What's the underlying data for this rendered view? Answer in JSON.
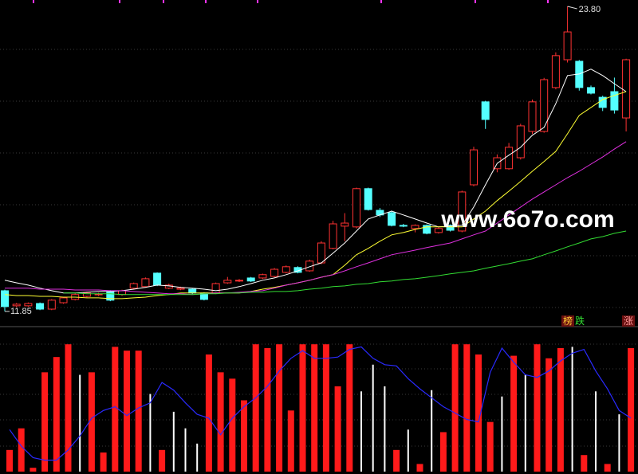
{
  "chart_data": [
    {
      "type": "candlestick",
      "ylim": [
        11.41,
        24.05
      ],
      "up_color": "#ff3232",
      "down_color": "#54ffff",
      "open": [
        12.66,
        12.07,
        12.07,
        12.16,
        11.94,
        12.19,
        12.32,
        12.44,
        12.51,
        12.63,
        12.51,
        12.76,
        12.82,
        13.35,
        12.76,
        12.72,
        12.72,
        12.57,
        12.57,
        12.97,
        13.04,
        13.16,
        13.16,
        13.22,
        13.38,
        13.57,
        13.44,
        13.75,
        14.32,
        15.19,
        15.16,
        16.66,
        15.81,
        15.72,
        15.22,
        15.1,
        15.22,
        14.94,
        15.22,
        15.0,
        16.81,
        20.06,
        17.44,
        17.44,
        17.87,
        18.9,
        18.9,
        20.62,
        21.71,
        21.65,
        20.62,
        20.24,
        20.46,
        19.43
      ],
      "high": [
        12.7,
        12.18,
        12.2,
        12.2,
        12.33,
        12.42,
        12.55,
        12.62,
        12.58,
        12.68,
        12.7,
        12.98,
        13.18,
        13.38,
        12.94,
        12.82,
        12.76,
        12.6,
        12.98,
        13.2,
        13.12,
        13.2,
        13.33,
        13.55,
        13.65,
        13.62,
        13.88,
        14.6,
        15.4,
        15.7,
        16.7,
        16.7,
        15.9,
        15.8,
        15.28,
        15.26,
        15.26,
        15.14,
        15.26,
        16.58,
        18.3,
        20.1,
        18.0,
        18.45,
        19.2,
        20.15,
        21.0,
        22.0,
        23.8,
        21.7,
        20.7,
        20.3,
        21.01,
        21.75
      ],
      "low": [
        11.85,
        12.02,
        12.03,
        11.9,
        11.9,
        12.15,
        12.28,
        12.4,
        12.45,
        12.25,
        12.46,
        12.72,
        12.78,
        12.84,
        12.72,
        12.68,
        12.5,
        12.28,
        12.53,
        12.93,
        13.0,
        13.0,
        13.12,
        13.18,
        13.34,
        13.34,
        13.4,
        13.7,
        14.28,
        14.6,
        15.1,
        15.8,
        15.55,
        15.18,
        15.15,
        14.95,
        14.87,
        14.9,
        14.98,
        14.95,
        16.75,
        19.0,
        17.3,
        17.4,
        17.8,
        18.8,
        18.85,
        20.55,
        21.6,
        20.5,
        20.35,
        19.7,
        19.6,
        18.9
      ],
      "close": [
        12.04,
        12.13,
        12.16,
        11.94,
        12.29,
        12.38,
        12.51,
        12.57,
        12.53,
        12.29,
        12.66,
        12.94,
        13.13,
        12.88,
        12.88,
        12.76,
        12.57,
        12.32,
        12.94,
        13.07,
        13.07,
        13.04,
        13.29,
        13.5,
        13.6,
        13.38,
        13.82,
        14.53,
        15.28,
        15.31,
        16.66,
        15.84,
        15.63,
        15.22,
        15.19,
        15.22,
        14.91,
        15.1,
        15.03,
        16.53,
        18.18,
        19.37,
        17.87,
        18.28,
        19.12,
        20.06,
        20.93,
        21.87,
        22.8,
        20.62,
        20.4,
        19.84,
        19.74,
        21.71
      ],
      "series": [
        {
          "color": "#ffffff",
          "values": [
            13.07,
            12.97,
            12.88,
            12.76,
            12.66,
            12.57,
            12.57,
            12.6,
            12.63,
            12.63,
            12.66,
            12.72,
            12.79,
            12.88,
            12.85,
            12.79,
            12.76,
            12.72,
            12.66,
            12.72,
            12.82,
            12.94,
            13.07,
            13.16,
            13.29,
            13.44,
            13.6,
            13.75,
            14.13,
            14.53,
            15.0,
            15.47,
            15.63,
            15.78,
            15.63,
            15.47,
            15.31,
            15.16,
            15.19,
            15.22,
            15.94,
            16.81,
            17.65,
            17.97,
            18.28,
            18.75,
            19.06,
            19.99,
            21.09,
            21.15,
            21.34,
            21.09,
            20.77,
            20.46
          ]
        },
        {
          "color": "#ffff33",
          "values": [
            12.51,
            12.47,
            12.47,
            12.44,
            12.44,
            12.41,
            12.41,
            12.38,
            12.38,
            12.35,
            12.35,
            12.38,
            12.41,
            12.47,
            12.51,
            12.57,
            12.57,
            12.57,
            12.57,
            12.57,
            12.57,
            12.63,
            12.72,
            12.79,
            12.88,
            12.97,
            13.07,
            13.19,
            13.29,
            13.66,
            14.07,
            14.32,
            14.6,
            14.85,
            14.94,
            15.06,
            15.16,
            15.16,
            15.16,
            15.16,
            15.47,
            15.78,
            16.19,
            16.56,
            16.94,
            17.34,
            17.72,
            18.12,
            18.81,
            19.53,
            19.84,
            20.15,
            20.31,
            20.46
          ]
        },
        {
          "color": "#e030e0",
          "values": [
            12.76,
            12.76,
            12.76,
            12.72,
            12.72,
            12.72,
            12.69,
            12.69,
            12.69,
            12.66,
            12.66,
            12.63,
            12.6,
            12.57,
            12.54,
            12.54,
            12.51,
            12.54,
            12.57,
            12.57,
            12.6,
            12.63,
            12.66,
            12.76,
            12.88,
            12.97,
            13.07,
            13.19,
            13.29,
            13.44,
            13.6,
            13.75,
            13.91,
            14.07,
            14.16,
            14.25,
            14.35,
            14.44,
            14.53,
            14.69,
            14.85,
            15.0,
            15.31,
            15.63,
            15.94,
            16.25,
            16.53,
            16.81,
            17.09,
            17.34,
            17.62,
            17.9,
            18.21,
            18.5
          ]
        },
        {
          "color": "#33dd33",
          "values": [
            null,
            null,
            null,
            null,
            null,
            12.57,
            12.57,
            12.54,
            12.54,
            12.54,
            12.51,
            12.51,
            12.51,
            12.51,
            12.51,
            12.51,
            12.51,
            12.54,
            12.54,
            12.57,
            12.57,
            12.6,
            12.6,
            12.63,
            12.63,
            12.66,
            12.72,
            12.76,
            12.82,
            12.85,
            12.91,
            12.94,
            13.01,
            13.04,
            13.1,
            13.13,
            13.19,
            13.25,
            13.32,
            13.38,
            13.44,
            13.54,
            13.63,
            13.72,
            13.82,
            13.91,
            14.07,
            14.22,
            14.38,
            14.53,
            14.69,
            14.78,
            14.91,
            15.0
          ]
        }
      ],
      "high_label": {
        "value": 23.8,
        "label": "23.80"
      },
      "low_label": {
        "value": 11.85,
        "label": "11.85"
      },
      "watermark": "www.6o7o.com",
      "markers": [
        "榜",
        "跌",
        "涨"
      ]
    },
    {
      "type": "bar",
      "ylim": [
        0,
        112
      ],
      "series": [
        {
          "color": "#ff1a1a",
          "style": "thick",
          "values": [
            17,
            34,
            3,
            78,
            90,
            100,
            null,
            78,
            15,
            98,
            95,
            95,
            null,
            17,
            null,
            null,
            null,
            92,
            78,
            73,
            56,
            100,
            97,
            100,
            48,
            100,
            100,
            100,
            67,
            100,
            null,
            null,
            null,
            17,
            null,
            6,
            null,
            31,
            100,
            100,
            92,
            39,
            null,
            91,
            null,
            100,
            89,
            97,
            null,
            13,
            null,
            6,
            null,
            97
          ]
        },
        {
          "color": "#ffffff",
          "style": "thin",
          "values": [
            null,
            null,
            null,
            null,
            null,
            null,
            76,
            null,
            null,
            null,
            null,
            null,
            61,
            null,
            47,
            34,
            22,
            null,
            null,
            null,
            null,
            null,
            null,
            null,
            null,
            null,
            null,
            null,
            null,
            null,
            63,
            84,
            67,
            null,
            33,
            null,
            64,
            null,
            null,
            null,
            null,
            null,
            59,
            null,
            76,
            null,
            null,
            null,
            98,
            null,
            63,
            null,
            45,
            null
          ]
        },
        {
          "color": "#2a2aff",
          "style": "line",
          "values": [
            33,
            20,
            11,
            9,
            9,
            17,
            28,
            42,
            48,
            51,
            44,
            50,
            54,
            70,
            64,
            54,
            45,
            42,
            29,
            42,
            51,
            58,
            67,
            79,
            89,
            95,
            89,
            89,
            90,
            96,
            98,
            89,
            84,
            83,
            73,
            65,
            58,
            51,
            46,
            41,
            39,
            78,
            97,
            86,
            76,
            74,
            79,
            87,
            93,
            96,
            79,
            65,
            48,
            42
          ]
        }
      ]
    }
  ]
}
